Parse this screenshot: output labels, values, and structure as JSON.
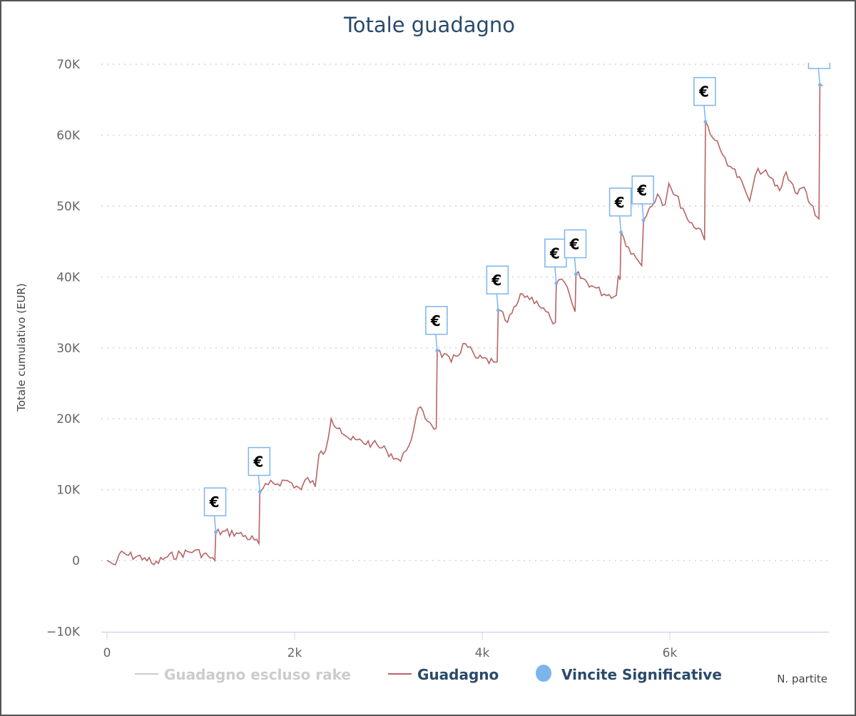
{
  "chart_data": {
    "type": "line",
    "title": "Totale guadagno",
    "xlabel": "N. partite",
    "ylabel": "Totale cumulativo (EUR)",
    "xlim": [
      0,
      7.7
    ],
    "ylim": [
      -10,
      70
    ],
    "x_unit": "thousands of games",
    "y_unit": "thousands EUR",
    "x_ticks": [
      "0",
      "2k",
      "4k",
      "6k"
    ],
    "x_tick_values": [
      0,
      2,
      4,
      6
    ],
    "y_ticks": [
      "70K",
      "60K",
      "50K",
      "40K",
      "30K",
      "20K",
      "10K",
      "0",
      "−10K"
    ],
    "y_tick_values": [
      70,
      60,
      50,
      40,
      30,
      20,
      10,
      0,
      -10
    ],
    "grid": "horizontal dotted",
    "legend_position": "bottom",
    "legend": [
      {
        "name": "Guadagno escluso rake",
        "color": "#cccccc",
        "hidden": true
      },
      {
        "name": "Guadagno",
        "color": "#b86464"
      },
      {
        "name": "Vincite Significative",
        "color": "#7cb5ec"
      }
    ],
    "series": [
      {
        "name": "Guadagno",
        "color": "#b86464",
        "x": [
          0,
          0.09,
          0.13,
          0.4,
          0.5,
          0.62,
          0.93,
          1.08,
          1.15,
          1.16,
          1.38,
          1.57,
          1.62,
          1.63,
          1.72,
          1.92,
          2.07,
          2.14,
          2.22,
          2.26,
          2.33,
          2.39,
          2.48,
          2.6,
          2.83,
          2.98,
          3.13,
          3.19,
          3.27,
          3.32,
          3.44,
          3.51,
          3.52,
          3.67,
          3.82,
          3.93,
          4.12,
          4.16,
          4.17,
          4.27,
          4.43,
          4.58,
          4.73,
          4.78,
          4.79,
          4.88,
          4.96,
          4.99,
          5.0,
          5.19,
          5.3,
          5.43,
          5.45,
          5.47,
          5.48,
          5.56,
          5.64,
          5.7,
          5.72,
          5.78,
          5.87,
          5.95,
          5.99,
          6.14,
          6.21,
          6.33,
          6.37,
          6.38,
          6.48,
          6.56,
          6.67,
          6.79,
          6.85,
          6.94,
          7.05,
          7.17,
          7.24,
          7.36,
          7.43,
          7.55,
          7.59,
          7.6,
          7.63
        ],
        "y": [
          0,
          -0.6,
          0.9,
          0.4,
          -0.6,
          0.4,
          1.4,
          0.6,
          0,
          4.0,
          3.9,
          2.9,
          2.4,
          9.7,
          10.7,
          11.3,
          10,
          11.7,
          10.4,
          15,
          15.5,
          20,
          18.7,
          17,
          16.5,
          15.5,
          14,
          15.5,
          18.5,
          21.5,
          19.5,
          18.7,
          29.6,
          28,
          30.6,
          28.6,
          28,
          28,
          35.3,
          33.6,
          37.6,
          36.6,
          34.1,
          33.6,
          39.1,
          39.2,
          36.2,
          35.1,
          40.4,
          38.6,
          37.6,
          37.4,
          40.1,
          39.6,
          46.3,
          44.2,
          42.7,
          41.6,
          48.0,
          49.7,
          51.7,
          50.2,
          53.2,
          49.7,
          47.7,
          46.7,
          45.2,
          61.9,
          59.3,
          57.3,
          55.3,
          52.7,
          50.7,
          55.3,
          54.3,
          52.2,
          54.8,
          51.7,
          52.7,
          48.7,
          48.2,
          67.1,
          67.0
        ]
      },
      {
        "name": "Vincite Significative",
        "color": "#7cb5ec",
        "marker": "€",
        "x": [
          1.16,
          1.63,
          3.52,
          4.17,
          4.79,
          5.0,
          5.48,
          5.72,
          6.38,
          7.6
        ],
        "y": [
          4.0,
          9.7,
          29.6,
          35.3,
          39.1,
          40.4,
          46.3,
          48.0,
          61.9,
          67.1
        ]
      }
    ]
  }
}
